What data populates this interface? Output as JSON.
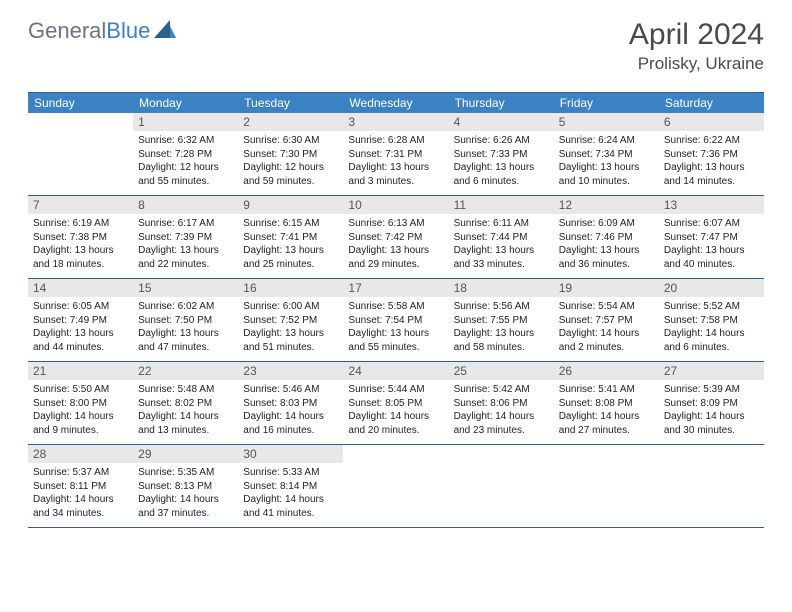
{
  "brand": {
    "part1": "General",
    "part2": "Blue"
  },
  "title": "April 2024",
  "location": "Prolisky, Ukraine",
  "colors": {
    "header_bg": "#3b82c4",
    "border": "#2b5f8e",
    "daynum_bg": "#e8e8e8",
    "text": "#222222",
    "brand_gray": "#6b7280",
    "brand_blue": "#3b82c4"
  },
  "day_headers": [
    "Sunday",
    "Monday",
    "Tuesday",
    "Wednesday",
    "Thursday",
    "Friday",
    "Saturday"
  ],
  "weeks": [
    [
      {
        "n": "",
        "lines": []
      },
      {
        "n": "1",
        "lines": [
          "Sunrise: 6:32 AM",
          "Sunset: 7:28 PM",
          "Daylight: 12 hours",
          "and 55 minutes."
        ]
      },
      {
        "n": "2",
        "lines": [
          "Sunrise: 6:30 AM",
          "Sunset: 7:30 PM",
          "Daylight: 12 hours",
          "and 59 minutes."
        ]
      },
      {
        "n": "3",
        "lines": [
          "Sunrise: 6:28 AM",
          "Sunset: 7:31 PM",
          "Daylight: 13 hours",
          "and 3 minutes."
        ]
      },
      {
        "n": "4",
        "lines": [
          "Sunrise: 6:26 AM",
          "Sunset: 7:33 PM",
          "Daylight: 13 hours",
          "and 6 minutes."
        ]
      },
      {
        "n": "5",
        "lines": [
          "Sunrise: 6:24 AM",
          "Sunset: 7:34 PM",
          "Daylight: 13 hours",
          "and 10 minutes."
        ]
      },
      {
        "n": "6",
        "lines": [
          "Sunrise: 6:22 AM",
          "Sunset: 7:36 PM",
          "Daylight: 13 hours",
          "and 14 minutes."
        ]
      }
    ],
    [
      {
        "n": "7",
        "lines": [
          "Sunrise: 6:19 AM",
          "Sunset: 7:38 PM",
          "Daylight: 13 hours",
          "and 18 minutes."
        ]
      },
      {
        "n": "8",
        "lines": [
          "Sunrise: 6:17 AM",
          "Sunset: 7:39 PM",
          "Daylight: 13 hours",
          "and 22 minutes."
        ]
      },
      {
        "n": "9",
        "lines": [
          "Sunrise: 6:15 AM",
          "Sunset: 7:41 PM",
          "Daylight: 13 hours",
          "and 25 minutes."
        ]
      },
      {
        "n": "10",
        "lines": [
          "Sunrise: 6:13 AM",
          "Sunset: 7:42 PM",
          "Daylight: 13 hours",
          "and 29 minutes."
        ]
      },
      {
        "n": "11",
        "lines": [
          "Sunrise: 6:11 AM",
          "Sunset: 7:44 PM",
          "Daylight: 13 hours",
          "and 33 minutes."
        ]
      },
      {
        "n": "12",
        "lines": [
          "Sunrise: 6:09 AM",
          "Sunset: 7:46 PM",
          "Daylight: 13 hours",
          "and 36 minutes."
        ]
      },
      {
        "n": "13",
        "lines": [
          "Sunrise: 6:07 AM",
          "Sunset: 7:47 PM",
          "Daylight: 13 hours",
          "and 40 minutes."
        ]
      }
    ],
    [
      {
        "n": "14",
        "lines": [
          "Sunrise: 6:05 AM",
          "Sunset: 7:49 PM",
          "Daylight: 13 hours",
          "and 44 minutes."
        ]
      },
      {
        "n": "15",
        "lines": [
          "Sunrise: 6:02 AM",
          "Sunset: 7:50 PM",
          "Daylight: 13 hours",
          "and 47 minutes."
        ]
      },
      {
        "n": "16",
        "lines": [
          "Sunrise: 6:00 AM",
          "Sunset: 7:52 PM",
          "Daylight: 13 hours",
          "and 51 minutes."
        ]
      },
      {
        "n": "17",
        "lines": [
          "Sunrise: 5:58 AM",
          "Sunset: 7:54 PM",
          "Daylight: 13 hours",
          "and 55 minutes."
        ]
      },
      {
        "n": "18",
        "lines": [
          "Sunrise: 5:56 AM",
          "Sunset: 7:55 PM",
          "Daylight: 13 hours",
          "and 58 minutes."
        ]
      },
      {
        "n": "19",
        "lines": [
          "Sunrise: 5:54 AM",
          "Sunset: 7:57 PM",
          "Daylight: 14 hours",
          "and 2 minutes."
        ]
      },
      {
        "n": "20",
        "lines": [
          "Sunrise: 5:52 AM",
          "Sunset: 7:58 PM",
          "Daylight: 14 hours",
          "and 6 minutes."
        ]
      }
    ],
    [
      {
        "n": "21",
        "lines": [
          "Sunrise: 5:50 AM",
          "Sunset: 8:00 PM",
          "Daylight: 14 hours",
          "and 9 minutes."
        ]
      },
      {
        "n": "22",
        "lines": [
          "Sunrise: 5:48 AM",
          "Sunset: 8:02 PM",
          "Daylight: 14 hours",
          "and 13 minutes."
        ]
      },
      {
        "n": "23",
        "lines": [
          "Sunrise: 5:46 AM",
          "Sunset: 8:03 PM",
          "Daylight: 14 hours",
          "and 16 minutes."
        ]
      },
      {
        "n": "24",
        "lines": [
          "Sunrise: 5:44 AM",
          "Sunset: 8:05 PM",
          "Daylight: 14 hours",
          "and 20 minutes."
        ]
      },
      {
        "n": "25",
        "lines": [
          "Sunrise: 5:42 AM",
          "Sunset: 8:06 PM",
          "Daylight: 14 hours",
          "and 23 minutes."
        ]
      },
      {
        "n": "26",
        "lines": [
          "Sunrise: 5:41 AM",
          "Sunset: 8:08 PM",
          "Daylight: 14 hours",
          "and 27 minutes."
        ]
      },
      {
        "n": "27",
        "lines": [
          "Sunrise: 5:39 AM",
          "Sunset: 8:09 PM",
          "Daylight: 14 hours",
          "and 30 minutes."
        ]
      }
    ],
    [
      {
        "n": "28",
        "lines": [
          "Sunrise: 5:37 AM",
          "Sunset: 8:11 PM",
          "Daylight: 14 hours",
          "and 34 minutes."
        ]
      },
      {
        "n": "29",
        "lines": [
          "Sunrise: 5:35 AM",
          "Sunset: 8:13 PM",
          "Daylight: 14 hours",
          "and 37 minutes."
        ]
      },
      {
        "n": "30",
        "lines": [
          "Sunrise: 5:33 AM",
          "Sunset: 8:14 PM",
          "Daylight: 14 hours",
          "and 41 minutes."
        ]
      },
      {
        "n": "",
        "lines": []
      },
      {
        "n": "",
        "lines": []
      },
      {
        "n": "",
        "lines": []
      },
      {
        "n": "",
        "lines": []
      }
    ]
  ]
}
